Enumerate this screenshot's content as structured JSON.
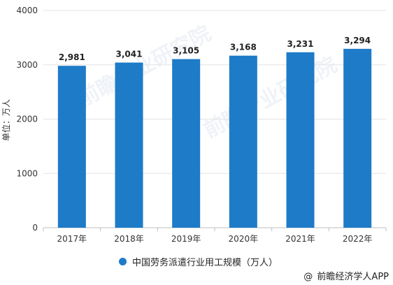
{
  "chart_data": {
    "type": "bar",
    "categories": [
      "2017年",
      "2018年",
      "2019年",
      "2020年",
      "2021年",
      "2022年"
    ],
    "series": [
      {
        "name": "中国劳务派遣行业用工规模（万人）",
        "values": [
          2981,
          3041,
          3105,
          3168,
          3231,
          3294
        ]
      }
    ],
    "data_labels": [
      "2,981",
      "3,041",
      "3,105",
      "3,168",
      "3,231",
      "3,294"
    ],
    "ylabel": "单位：万人",
    "ylim": [
      0,
      4000
    ],
    "yticks": [
      0,
      1000,
      2000,
      3000,
      4000
    ],
    "grid": true,
    "legend": "bottom",
    "bar_color": "#1e7bc8"
  },
  "watermark": "前瞻产业研究院",
  "source": {
    "logo_text": "@",
    "text": "前瞻经济学人APP"
  }
}
